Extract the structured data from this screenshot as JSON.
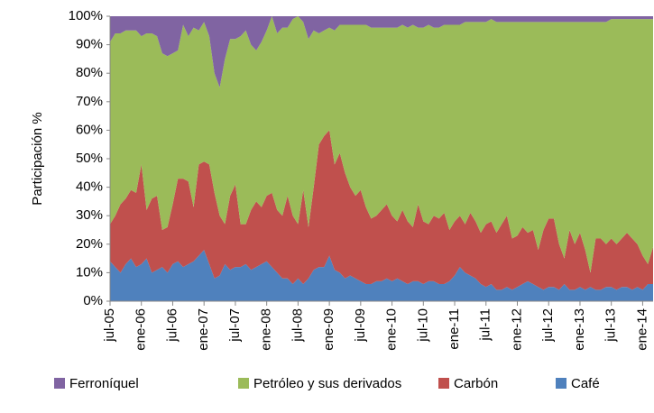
{
  "chart_data": {
    "type": "area",
    "stacked": true,
    "grid": false,
    "legend": "bottom",
    "ylabel": "Participación %",
    "categories": [
      "jul-05",
      null,
      null,
      null,
      null,
      null,
      "ene-06",
      null,
      null,
      null,
      null,
      null,
      "jul-06",
      null,
      null,
      null,
      null,
      null,
      "ene-07",
      null,
      null,
      null,
      null,
      null,
      "jul-07",
      null,
      null,
      null,
      null,
      null,
      "ene-08",
      null,
      null,
      null,
      null,
      null,
      "jul-08",
      null,
      null,
      null,
      null,
      null,
      "ene-09",
      null,
      null,
      null,
      null,
      null,
      "jul-09",
      null,
      null,
      null,
      null,
      null,
      "ene-10",
      null,
      null,
      null,
      null,
      null,
      "jul-10",
      null,
      null,
      null,
      null,
      null,
      "ene-11",
      null,
      null,
      null,
      null,
      null,
      "jul-11",
      null,
      null,
      null,
      null,
      null,
      "ene-12",
      null,
      null,
      null,
      null,
      null,
      "jul-12",
      null,
      null,
      null,
      null,
      null,
      "ene-13",
      null,
      null,
      null,
      null,
      null,
      "jul-13",
      null,
      null,
      null,
      null,
      null,
      "ene-14",
      null,
      null
    ],
    "ylim": [
      0,
      100
    ],
    "yticks": [
      {
        "value": 0,
        "label": "0%"
      },
      {
        "value": 10,
        "label": "10%"
      },
      {
        "value": 20,
        "label": "20%"
      },
      {
        "value": 30,
        "label": "30%"
      },
      {
        "value": 40,
        "label": "40%"
      },
      {
        "value": 50,
        "label": "50%"
      },
      {
        "value": 60,
        "label": "60%"
      },
      {
        "value": 70,
        "label": "70%"
      },
      {
        "value": 80,
        "label": "80%"
      },
      {
        "value": 90,
        "label": "90%"
      },
      {
        "value": 100,
        "label": "100%"
      }
    ],
    "series": [
      {
        "name": "Café",
        "color": "#4f81bd",
        "values": [
          14,
          12,
          10,
          13,
          15,
          12,
          13,
          15,
          10,
          11,
          12,
          10,
          13,
          14,
          12,
          13,
          14,
          16,
          18,
          13,
          8,
          9,
          13,
          11,
          12,
          12,
          13,
          11,
          12,
          13,
          14,
          12,
          10,
          8,
          8,
          6,
          8,
          6,
          8,
          11,
          12,
          12,
          16,
          11,
          10,
          8,
          9,
          8,
          7,
          6,
          6,
          7,
          7,
          8,
          7,
          8,
          7,
          6,
          7,
          7,
          6,
          7,
          7,
          6,
          6,
          7,
          9,
          12,
          10,
          9,
          8,
          6,
          5,
          6,
          4,
          4,
          5,
          4,
          5,
          6,
          7,
          6,
          5,
          4,
          5,
          5,
          4,
          6,
          4,
          4,
          5,
          4,
          5,
          4,
          4,
          5,
          5,
          4,
          5,
          5,
          4,
          5,
          4,
          6,
          6
        ]
      },
      {
        "name": "Carbón",
        "color": "#c0504d",
        "values": [
          13,
          18,
          24,
          23,
          24,
          26,
          35,
          17,
          26,
          26,
          13,
          16,
          21,
          29,
          31,
          29,
          19,
          32,
          31,
          35,
          30,
          21,
          14,
          26,
          29,
          15,
          14,
          21,
          23,
          20,
          23,
          26,
          22,
          22,
          29,
          24,
          19,
          33,
          18,
          29,
          43,
          46,
          44,
          37,
          42,
          37,
          31,
          29,
          32,
          27,
          23,
          23,
          25,
          26,
          23,
          20,
          25,
          22,
          19,
          27,
          22,
          20,
          23,
          23,
          25,
          18,
          19,
          18,
          17,
          22,
          20,
          18,
          22,
          22,
          20,
          23,
          25,
          18,
          18,
          20,
          17,
          19,
          13,
          21,
          24,
          24,
          16,
          9,
          21,
          16,
          19,
          14,
          5,
          18,
          18,
          15,
          17,
          16,
          17,
          19,
          18,
          15,
          12,
          7,
          13
        ]
      },
      {
        "name": "Petróleo y sus derivados",
        "color": "#9bbb59",
        "values": [
          64,
          64,
          60,
          59,
          56,
          57,
          45,
          62,
          58,
          56,
          62,
          60,
          53,
          45,
          54,
          51,
          63,
          47,
          49,
          45,
          42,
          45,
          58,
          55,
          51,
          66,
          68,
          58,
          53,
          58,
          58,
          62,
          62,
          66,
          59,
          69,
          73,
          59,
          66,
          55,
          39,
          37,
          36,
          47,
          45,
          52,
          57,
          60,
          58,
          64,
          67,
          66,
          64,
          62,
          66,
          68,
          65,
          68,
          71,
          62,
          68,
          70,
          66,
          67,
          66,
          72,
          69,
          67,
          71,
          67,
          70,
          74,
          71,
          71,
          74,
          71,
          68,
          76,
          75,
          72,
          74,
          73,
          80,
          73,
          69,
          69,
          78,
          83,
          73,
          78,
          74,
          80,
          88,
          76,
          76,
          78,
          77,
          79,
          77,
          75,
          77,
          79,
          83,
          86,
          80
        ]
      },
      {
        "name": "Ferroníquel",
        "color": "#8064a2",
        "values": [
          9,
          6,
          6,
          5,
          5,
          5,
          7,
          6,
          6,
          7,
          13,
          14,
          13,
          12,
          3,
          7,
          4,
          5,
          2,
          7,
          20,
          25,
          15,
          8,
          8,
          7,
          5,
          10,
          12,
          9,
          5,
          0,
          6,
          4,
          4,
          1,
          0,
          2,
          8,
          5,
          6,
          5,
          4,
          5,
          3,
          3,
          3,
          3,
          3,
          3,
          4,
          4,
          4,
          4,
          4,
          4,
          3,
          4,
          3,
          4,
          4,
          3,
          4,
          4,
          3,
          3,
          3,
          3,
          2,
          2,
          2,
          2,
          2,
          1,
          2,
          2,
          2,
          2,
          2,
          2,
          2,
          2,
          2,
          2,
          2,
          2,
          2,
          2,
          2,
          2,
          2,
          2,
          2,
          2,
          2,
          2,
          1,
          1,
          1,
          1,
          1,
          1,
          1,
          1,
          1
        ]
      }
    ]
  }
}
